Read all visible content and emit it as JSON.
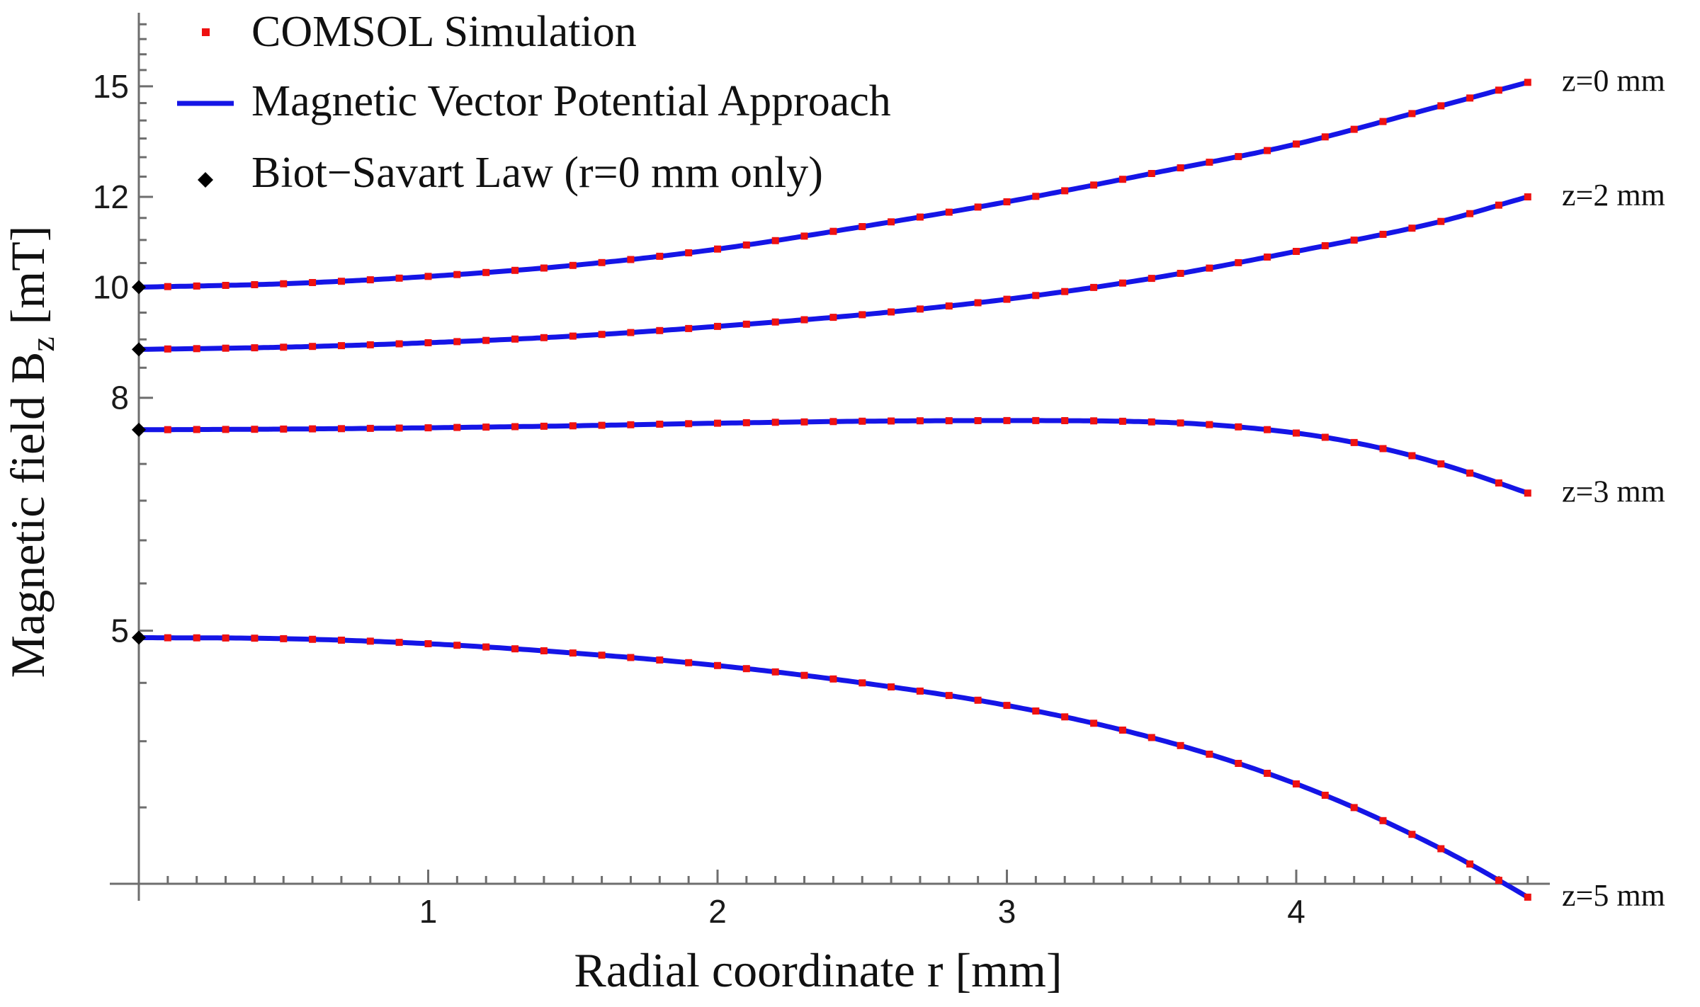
{
  "chart_data": {
    "type": "line",
    "title": "",
    "xlabel": "Radial coordinate r [mm]",
    "ylabel_main": "Magnetic field B",
    "ylabel_sub": "z",
    "ylabel_unit": " [mT]",
    "xlim": [
      0,
      4.88
    ],
    "ylim": [
      3.0,
      17.4
    ],
    "y_scale": "log",
    "x_ticks": [
      {
        "value": 1,
        "label": "1"
      },
      {
        "value": 2,
        "label": "2"
      },
      {
        "value": 3,
        "label": "3"
      },
      {
        "value": 4,
        "label": "4"
      }
    ],
    "y_ticks": [
      {
        "value": 5,
        "label": "5"
      },
      {
        "value": 8,
        "label": "8"
      },
      {
        "value": 10,
        "label": "10"
      },
      {
        "value": 12,
        "label": "12"
      },
      {
        "value": 15,
        "label": "15"
      }
    ],
    "legend": {
      "position": "top-left",
      "entries": [
        {
          "label": "COMSOL Simulation",
          "marker": "square",
          "color": "#ee1111"
        },
        {
          "label": "Magnetic Vector Potential Approach",
          "marker": "line",
          "color": "#1515e6"
        },
        {
          "label": "Biot−Savart Law (r=0 mm only)",
          "marker": "diamond",
          "color": "#000000"
        }
      ]
    },
    "series": [
      {
        "name": "z=0 mm",
        "label": "z=0 mm",
        "x": [
          0,
          0.5,
          1,
          1.5,
          2,
          2.5,
          3,
          3.5,
          4,
          4.5,
          4.8
        ],
        "y": [
          10.0,
          10.07,
          10.22,
          10.45,
          10.8,
          11.3,
          11.88,
          12.58,
          13.35,
          14.42,
          15.12
        ]
      },
      {
        "name": "z=2 mm",
        "label": "z=2 mm",
        "x": [
          0,
          0.5,
          1,
          1.5,
          2,
          2.5,
          3,
          3.5,
          4,
          4.5,
          4.8
        ],
        "y": [
          8.82,
          8.86,
          8.94,
          9.06,
          9.24,
          9.46,
          9.76,
          10.18,
          10.75,
          11.42,
          12.0
        ]
      },
      {
        "name": "z=3 mm",
        "label": "z=3 mm",
        "x": [
          0,
          0.5,
          1,
          1.5,
          2,
          2.5,
          3,
          3.5,
          4,
          4.3,
          4.5,
          4.8
        ],
        "y": [
          7.5,
          7.51,
          7.53,
          7.56,
          7.6,
          7.63,
          7.64,
          7.62,
          7.45,
          7.22,
          7.0,
          6.6
        ]
      },
      {
        "name": "z=5 mm",
        "label": "z=5 mm",
        "x": [
          0,
          0.5,
          1,
          1.5,
          2,
          2.5,
          3,
          3.5,
          4,
          4.5,
          4.8
        ],
        "y": [
          4.93,
          4.92,
          4.87,
          4.78,
          4.66,
          4.5,
          4.3,
          4.03,
          3.67,
          3.22,
          2.92
        ]
      }
    ],
    "comsol_points_per_curve": 48,
    "biot_savart": {
      "x": [
        0,
        0,
        0,
        0
      ],
      "y": [
        10.0,
        8.82,
        7.5,
        4.93
      ]
    }
  }
}
